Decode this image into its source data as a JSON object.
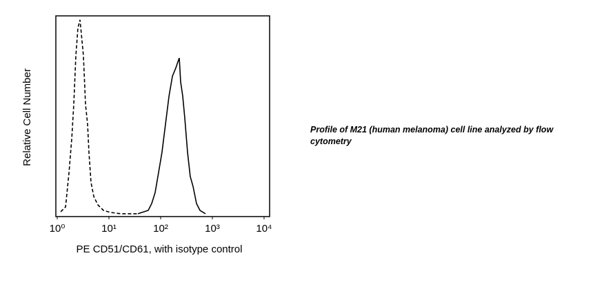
{
  "chart_data": {
    "type": "line",
    "xlabel": "PE CD51/CD61, with isotype control",
    "ylabel": "Relative Cell Number",
    "caption": "Profile of M21 (human melanoma) cell line analyzed by flow cytometry",
    "xscale": "log",
    "xlim": [
      0.94,
      12800
    ],
    "xticks": [
      {
        "value": 1,
        "label": "10⁰"
      },
      {
        "value": 10,
        "label": "10¹"
      },
      {
        "value": 100,
        "label": "10²"
      },
      {
        "value": 1000,
        "label": "10³"
      },
      {
        "value": 10000,
        "label": "10⁴"
      }
    ],
    "ylim": [
      0,
      100
    ],
    "series": [
      {
        "color": "#000000",
        "line_style": "dashed",
        "x": [
          1.17,
          1.45,
          1.69,
          1.91,
          2.09,
          2.29,
          2.51,
          2.75,
          2.93,
          3.21,
          3.52,
          3.86,
          4.1,
          4.5,
          5.09,
          6.12,
          7.82,
          10.6,
          16.9,
          36.3
        ],
        "values": [
          2.4,
          4.8,
          22,
          39,
          56,
          80,
          94,
          98,
          91,
          80,
          56,
          46,
          32,
          17,
          10,
          5.8,
          3.1,
          2.1,
          1.4,
          1.4
        ]
      },
      {
        "color": "#000000",
        "line_style": "solid",
        "x": [
          36.3,
          57.5,
          67.1,
          78.2,
          91.2,
          106,
          124,
          145,
          169,
          196,
          215,
          229,
          244,
          267,
          293,
          331,
          374,
          424,
          494,
          575,
          736
        ],
        "values": [
          1.4,
          3.1,
          6.5,
          12,
          22,
          32,
          46,
          60,
          70,
          74,
          77,
          79,
          67,
          60,
          49,
          32,
          20,
          15,
          6.5,
          3.1,
          1.4
        ]
      }
    ]
  }
}
